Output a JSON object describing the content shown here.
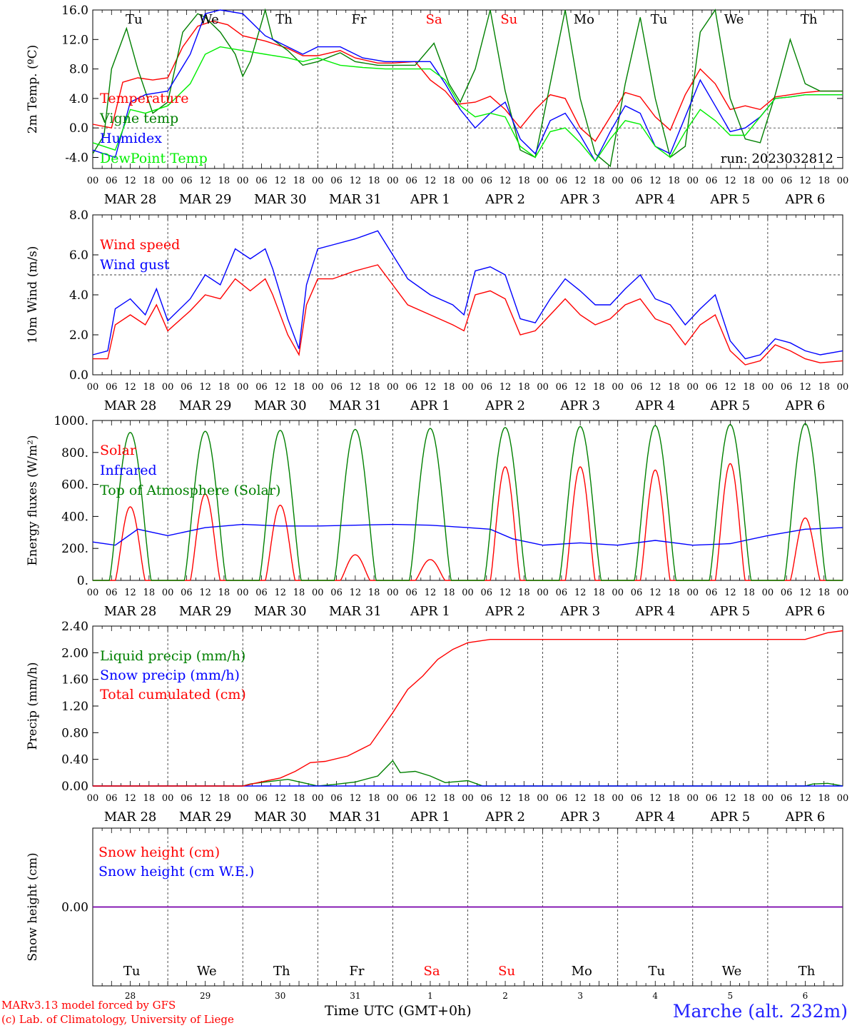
{
  "run_label": "run: 2023032812",
  "footer": {
    "credit_line1": "MARv3.13 model forced by GFS",
    "credit_line2": "(c) Lab. of Climatology, University of Liege",
    "xaxis_title": "Time UTC (GMT+0h)",
    "station": "Marche (alt. 232m)"
  },
  "colors": {
    "red": "#ff0000",
    "green": "#008000",
    "blue": "#0000ff",
    "lightgreen": "#00ee00",
    "purple": "#7700aa"
  },
  "time_axis": {
    "hour_ticks": [
      "00",
      "06",
      "12",
      "18"
    ],
    "dates": [
      "MAR 28",
      "MAR 29",
      "MAR 30",
      "MAR 31",
      "APR  1",
      "APR  2",
      "APR  3",
      "APR  4",
      "APR  5",
      "APR  6"
    ],
    "weekdays": [
      "Tu",
      "We",
      "Th",
      "Fr",
      "Sa",
      "Su",
      "Mo",
      "Tu",
      "We",
      "Th"
    ],
    "weekend_days": [
      4,
      5
    ],
    "day_numbers": [
      "28",
      "29",
      "30",
      "31",
      "1",
      "2",
      "3",
      "4",
      "5",
      "6"
    ]
  },
  "chart_data": [
    {
      "type": "line",
      "ylabel": "2m Temp. (ºC)",
      "ylim": [
        -5.5,
        16.0
      ],
      "yticks": [
        16.0,
        12.0,
        8.0,
        4.0,
        0.0,
        -4.0
      ],
      "ytick_labels": [
        "16.0",
        "12.0",
        "8.0",
        "4.0",
        "0.0",
        "-4.0"
      ],
      "ref_line": 0.0,
      "x_unit": "day offset from MAR 28 00 UTC",
      "series": [
        {
          "name": "Temperature",
          "color": "red",
          "x": [
            0,
            0.25,
            0.4,
            0.6,
            0.8,
            1.0,
            1.2,
            1.4,
            1.6,
            1.8,
            2.0,
            2.3,
            2.6,
            2.8,
            3.0,
            3.3,
            3.5,
            3.8,
            4.0,
            4.3,
            4.5,
            4.7,
            4.85,
            5.1,
            5.3,
            5.5,
            5.7,
            5.9,
            6.1,
            6.3,
            6.5,
            6.7,
            6.9,
            7.1,
            7.3,
            7.5,
            7.7,
            7.9,
            8.1,
            8.3,
            8.5,
            8.7,
            8.9,
            9.1,
            9.3,
            9.5,
            9.7,
            10.0
          ],
          "y": [
            0.5,
            0,
            6.2,
            6.8,
            6.5,
            6.8,
            11,
            13.8,
            14.5,
            14,
            12.5,
            11.8,
            10.8,
            9.8,
            9.8,
            10.5,
            9.5,
            8.8,
            8.8,
            9,
            6.5,
            5,
            3.2,
            3.5,
            4.3,
            2.5,
            0,
            2.5,
            4.5,
            4,
            0,
            -1.8,
            1.5,
            4.8,
            4.2,
            1.5,
            -0.3,
            4.5,
            8,
            6,
            2.5,
            3,
            2.5,
            4.2,
            4.5,
            4.8,
            5,
            5
          ]
        },
        {
          "name": "Vigne temp",
          "color": "green",
          "x": [
            0,
            0.15,
            0.25,
            0.45,
            0.6,
            0.8,
            1.0,
            1.2,
            1.4,
            1.5,
            1.7,
            1.9,
            2.0,
            2.1,
            2.3,
            2.4,
            2.6,
            2.8,
            3.0,
            3.3,
            3.5,
            3.8,
            4.0,
            4.3,
            4.55,
            4.75,
            4.9,
            5.1,
            5.3,
            5.5,
            5.7,
            5.9,
            6.1,
            6.3,
            6.5,
            6.7,
            6.9,
            7.1,
            7.3,
            7.5,
            7.7,
            7.9,
            8.1,
            8.3,
            8.5,
            8.7,
            8.9,
            9.1,
            9.3,
            9.5,
            9.7,
            10.0
          ],
          "y": [
            -3.5,
            -1,
            8,
            13.5,
            8,
            2,
            3.5,
            13,
            15.5,
            15,
            13,
            10,
            7,
            9,
            16,
            12,
            10.5,
            8.5,
            9,
            10.2,
            9,
            8.5,
            8.5,
            8.5,
            11.5,
            6,
            3.5,
            8,
            16,
            5,
            -3,
            -4,
            6,
            16,
            4,
            -3.5,
            -5.2,
            6,
            15,
            4,
            -4,
            -2.5,
            13,
            16,
            4,
            -1.5,
            -2,
            4.5,
            12,
            6,
            5,
            5
          ]
        },
        {
          "name": "Humidex",
          "color": "blue",
          "x": [
            0,
            0.3,
            0.5,
            0.7,
            1.0,
            1.3,
            1.5,
            1.7,
            2.0,
            2.3,
            2.6,
            2.8,
            3.0,
            3.3,
            3.6,
            3.9,
            4.2,
            4.5,
            4.7,
            4.9,
            5.1,
            5.3,
            5.5,
            5.7,
            5.9,
            6.1,
            6.3,
            6.5,
            6.7,
            6.9,
            7.1,
            7.3,
            7.5,
            7.7,
            7.9,
            8.1,
            8.3,
            8.5,
            8.7,
            8.9,
            9.1,
            9.3,
            9.5,
            9.7,
            10.0
          ],
          "y": [
            -3,
            -4,
            3.5,
            4.5,
            5,
            10,
            15.5,
            16,
            15.5,
            12.5,
            11,
            10,
            11,
            11,
            9.5,
            9,
            9,
            9,
            6,
            2.5,
            0,
            2,
            3.5,
            -1.5,
            -3.5,
            1,
            2,
            -1,
            -4.5,
            -0.5,
            3,
            2,
            -2.5,
            -3.5,
            1.5,
            6.5,
            3,
            -0.5,
            0,
            1.5,
            4,
            4.2,
            4.5,
            4.5,
            4.5
          ]
        },
        {
          "name": "DewPoint Temp",
          "color": "lightgreen",
          "x": [
            0,
            0.3,
            0.5,
            0.7,
            1.0,
            1.3,
            1.5,
            1.7,
            2.0,
            2.3,
            2.6,
            2.8,
            3.0,
            3.3,
            3.6,
            3.9,
            4.2,
            4.5,
            4.7,
            4.9,
            5.1,
            5.3,
            5.5,
            5.7,
            5.9,
            6.1,
            6.3,
            6.5,
            6.7,
            6.9,
            7.1,
            7.3,
            7.5,
            7.7,
            7.9,
            8.1,
            8.3,
            8.5,
            8.7,
            8.9,
            9.1,
            9.3,
            9.5,
            9.7,
            10.0
          ],
          "y": [
            -2,
            -3,
            2.5,
            2,
            3,
            6,
            10,
            11,
            10.5,
            10,
            9.5,
            9,
            9.5,
            8.5,
            8.2,
            8,
            8,
            8,
            6.5,
            3,
            1.5,
            2,
            1.5,
            -2.5,
            -4,
            -0.5,
            0,
            -2,
            -4.5,
            -1.5,
            1,
            0.5,
            -2.5,
            -4,
            -0.5,
            2.5,
            1,
            -1,
            -1,
            1.5,
            4,
            4.2,
            4.5,
            4.5,
            4.5
          ]
        }
      ]
    },
    {
      "type": "line",
      "ylabel": "10m Wind (m/s)",
      "ylim": [
        0.0,
        8.0
      ],
      "yticks": [
        8.0,
        6.0,
        4.0,
        2.0,
        0.0
      ],
      "ytick_labels": [
        "8.0",
        "6.0",
        "4.0",
        "2.0",
        "0.0"
      ],
      "ref_line": 5.0,
      "x_unit": "day offset from MAR 28 00 UTC",
      "series": [
        {
          "name": "Wind speed",
          "color": "red",
          "x": [
            0,
            0.2,
            0.3,
            0.5,
            0.7,
            0.85,
            1.0,
            1.3,
            1.5,
            1.7,
            1.9,
            2.1,
            2.3,
            2.4,
            2.6,
            2.75,
            2.85,
            3.0,
            3.2,
            3.5,
            3.8,
            4.0,
            4.2,
            4.5,
            4.8,
            4.95,
            5.1,
            5.3,
            5.5,
            5.7,
            5.9,
            6.1,
            6.3,
            6.5,
            6.7,
            6.9,
            7.1,
            7.3,
            7.5,
            7.7,
            7.9,
            8.1,
            8.3,
            8.5,
            8.7,
            8.9,
            9.1,
            9.3,
            9.5,
            9.7,
            10.0
          ],
          "y": [
            0.8,
            0.8,
            2.5,
            3,
            2.5,
            3.5,
            2.2,
            3.2,
            4,
            3.8,
            4.8,
            4.2,
            4.8,
            4,
            2,
            1,
            3.5,
            4.8,
            4.8,
            5.2,
            5.5,
            4.5,
            3.5,
            3,
            2.5,
            2.2,
            4,
            4.2,
            3.8,
            2,
            2.2,
            3,
            3.8,
            3,
            2.5,
            2.8,
            3.5,
            3.8,
            2.8,
            2.5,
            1.5,
            2.5,
            3,
            1.2,
            0.5,
            0.7,
            1.5,
            1.2,
            0.8,
            0.6,
            0.7
          ]
        },
        {
          "name": "Wind gust",
          "color": "blue",
          "x": [
            0,
            0.2,
            0.3,
            0.5,
            0.7,
            0.85,
            1.0,
            1.3,
            1.5,
            1.7,
            1.9,
            2.1,
            2.3,
            2.4,
            2.6,
            2.75,
            2.85,
            3.0,
            3.2,
            3.5,
            3.8,
            4.0,
            4.2,
            4.5,
            4.8,
            4.95,
            5.1,
            5.3,
            5.5,
            5.7,
            5.9,
            6.1,
            6.3,
            6.5,
            6.7,
            6.9,
            7.1,
            7.3,
            7.5,
            7.7,
            7.9,
            8.1,
            8.3,
            8.5,
            8.7,
            8.9,
            9.1,
            9.3,
            9.5,
            9.7,
            10.0
          ],
          "y": [
            1,
            1.2,
            3.3,
            3.8,
            3,
            4.3,
            2.7,
            3.8,
            5,
            4.5,
            6.3,
            5.8,
            6.3,
            5.3,
            2.8,
            1.3,
            4.5,
            6.3,
            6.5,
            6.8,
            7.2,
            6,
            4.8,
            4,
            3.5,
            3,
            5.2,
            5.4,
            5,
            2.8,
            2.6,
            3.8,
            4.8,
            4.2,
            3.5,
            3.5,
            4.3,
            5,
            3.8,
            3.5,
            2.5,
            3.3,
            4,
            1.7,
            0.8,
            1,
            1.8,
            1.6,
            1.2,
            1,
            1.2
          ]
        }
      ]
    },
    {
      "type": "line",
      "ylabel": "Energy fluxes (W/m²)",
      "ylim": [
        0,
        1000
      ],
      "yticks": [
        1000,
        800,
        600,
        400,
        200,
        0
      ],
      "ytick_labels": [
        "1000.",
        "800.",
        "600.",
        "400.",
        "200.",
        "0."
      ],
      "x_unit": "day offset from MAR 28 00 UTC",
      "series": [
        {
          "name": "Solar",
          "color": "red",
          "peaks": [
            {
              "day": 0,
              "value": 460
            },
            {
              "day": 1,
              "value": 540
            },
            {
              "day": 2,
              "value": 470
            },
            {
              "day": 3,
              "value": 160
            },
            {
              "day": 4,
              "value": 130
            },
            {
              "day": 5,
              "value": 710
            },
            {
              "day": 6,
              "value": 710
            },
            {
              "day": 7,
              "value": 690
            },
            {
              "day": 8,
              "value": 730
            },
            {
              "day": 9,
              "value": 390
            }
          ]
        },
        {
          "name": "Infrared",
          "color": "blue",
          "x": [
            0,
            0.3,
            0.6,
            1.0,
            1.5,
            2.0,
            2.5,
            3.0,
            3.5,
            4.0,
            4.5,
            5.0,
            5.3,
            5.6,
            6.0,
            6.5,
            7.0,
            7.5,
            8.0,
            8.5,
            9.0,
            9.5,
            10.0
          ],
          "y": [
            240,
            220,
            320,
            280,
            330,
            350,
            340,
            340,
            345,
            350,
            345,
            330,
            320,
            260,
            220,
            235,
            220,
            250,
            220,
            230,
            280,
            320,
            330
          ]
        },
        {
          "name": "Top of Atmosphere (Solar)",
          "color": "green",
          "peaks": [
            {
              "day": 0,
              "value": 925
            },
            {
              "day": 1,
              "value": 932
            },
            {
              "day": 2,
              "value": 938
            },
            {
              "day": 3,
              "value": 944
            },
            {
              "day": 4,
              "value": 950
            },
            {
              "day": 5,
              "value": 956
            },
            {
              "day": 6,
              "value": 962
            },
            {
              "day": 7,
              "value": 968
            },
            {
              "day": 8,
              "value": 974
            },
            {
              "day": 9,
              "value": 980
            }
          ]
        }
      ]
    },
    {
      "type": "line",
      "ylabel": "Precip (mm/h)",
      "ylim": [
        0.0,
        2.4
      ],
      "yticks": [
        2.4,
        2.0,
        1.6,
        1.2,
        0.8,
        0.4,
        0.0
      ],
      "ytick_labels": [
        "2.40",
        "2.00",
        "1.60",
        "1.20",
        "0.80",
        "0.40",
        "0.00"
      ],
      "x_unit": "day offset from MAR 28 00 UTC",
      "series": [
        {
          "name": "Liquid precip (mm/h)",
          "color": "green",
          "x": [
            0,
            2.0,
            2.1,
            2.3,
            2.6,
            2.8,
            3.0,
            3.2,
            3.5,
            3.8,
            4.0,
            4.1,
            4.3,
            4.5,
            4.7,
            5.0,
            5.2,
            9.5,
            9.6,
            9.8,
            9.9,
            10.0
          ],
          "y": [
            0,
            0,
            0.03,
            0.06,
            0.1,
            0.05,
            0,
            0.02,
            0.06,
            0.15,
            0.38,
            0.2,
            0.22,
            0.15,
            0.05,
            0.08,
            0,
            0,
            0.03,
            0.04,
            0.02,
            0
          ]
        },
        {
          "name": "Snow precip (mm/h)",
          "color": "blue",
          "x": [
            0,
            10.0
          ],
          "y": [
            0,
            0
          ]
        },
        {
          "name": "Total cumulated (cm)",
          "color": "red",
          "x": [
            0,
            2.0,
            2.2,
            2.5,
            2.7,
            2.9,
            3.1,
            3.4,
            3.7,
            4.0,
            4.2,
            4.4,
            4.6,
            4.8,
            5.0,
            5.3,
            5.6,
            6.0,
            9.5,
            9.8,
            10.0
          ],
          "y": [
            0,
            0,
            0.05,
            0.12,
            0.22,
            0.35,
            0.37,
            0.45,
            0.62,
            1.1,
            1.45,
            1.65,
            1.9,
            2.05,
            2.15,
            2.2,
            2.2,
            2.2,
            2.2,
            2.3,
            2.33
          ]
        }
      ]
    },
    {
      "type": "line",
      "ylabel": "Snow height (cm)",
      "ylim": [
        -1,
        1
      ],
      "yticks": [
        0.0
      ],
      "ytick_labels": [
        "0.00"
      ],
      "x_unit": "day offset from MAR 28 00 UTC",
      "series": [
        {
          "name": "Snow height (cm)",
          "color": "red",
          "x": [
            0,
            10.0
          ],
          "y": [
            0,
            0
          ]
        },
        {
          "name": "Snow height (cm W.E.)",
          "color": "blue",
          "x": [
            0,
            10.0
          ],
          "y": [
            0,
            0
          ]
        }
      ]
    }
  ]
}
